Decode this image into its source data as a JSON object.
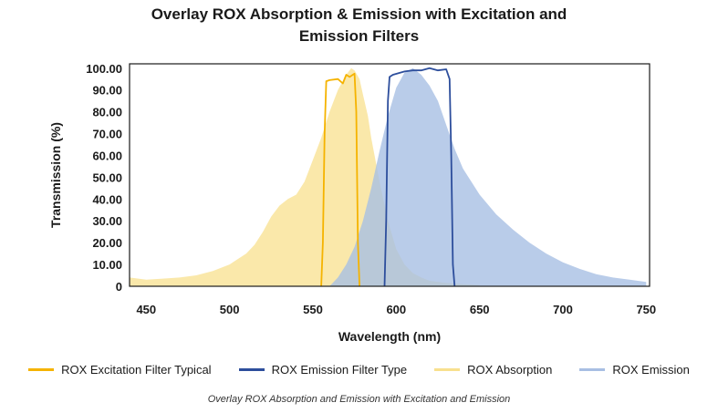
{
  "chart_data": {
    "type": "area",
    "title_line1": "Overlay ROX Absorption & Emission with Excitation and",
    "title_line2": "Emission Filters",
    "xlabel": "Wavelength (nm)",
    "ylabel": "Transmission (%)",
    "xlim": [
      440,
      752
    ],
    "ylim": [
      0,
      102
    ],
    "x_ticks": [
      "450",
      "500",
      "550",
      "600",
      "650",
      "700",
      "750"
    ],
    "y_ticks": [
      "0",
      "10.00",
      "20.00",
      "30.00",
      "40.00",
      "50.00",
      "60.00",
      "70.00",
      "80.00",
      "90.00",
      "100.00"
    ],
    "caption": "Overlay ROX Absorption and Emission with Excitation and Emission",
    "series": [
      {
        "name": "ROX Absorption",
        "kind": "area",
        "color": "#f8e08e",
        "opacity": 0.75,
        "x": [
          440,
          450,
          460,
          470,
          480,
          490,
          500,
          510,
          515,
          520,
          525,
          530,
          535,
          540,
          545,
          550,
          555,
          560,
          565,
          570,
          573,
          575,
          578,
          580,
          583,
          585,
          590,
          595,
          600,
          605,
          610,
          615,
          620,
          630,
          640,
          650
        ],
        "y": [
          4,
          3,
          3.5,
          4,
          5,
          7,
          10,
          15,
          19,
          25,
          32,
          37,
          40,
          42,
          48,
          58,
          68,
          80,
          90,
          97,
          100,
          99,
          95,
          88,
          78,
          68,
          48,
          30,
          17,
          10,
          6,
          4,
          2.5,
          1.5,
          1,
          0.5
        ]
      },
      {
        "name": "ROX Emission",
        "kind": "area",
        "color": "#a8bfe3",
        "opacity": 0.8,
        "x": [
          560,
          565,
          570,
          575,
          580,
          585,
          590,
          595,
          600,
          605,
          610,
          615,
          620,
          625,
          630,
          635,
          640,
          650,
          660,
          670,
          680,
          690,
          700,
          710,
          720,
          730,
          740,
          750
        ],
        "y": [
          0,
          4,
          10,
          18,
          30,
          45,
          62,
          78,
          91,
          98,
          100,
          97,
          92,
          85,
          74,
          63,
          54,
          42,
          33,
          26,
          20,
          15,
          11,
          8,
          5.5,
          4,
          3,
          2
        ]
      },
      {
        "name": "ROX Excitation Filter Typical",
        "kind": "line",
        "color": "#f5b300",
        "x": [
          555,
          556,
          557,
          558,
          560,
          565,
          568,
          570,
          572,
          575,
          576,
          577,
          578
        ],
        "y": [
          0,
          20,
          70,
          94,
          94.5,
          95,
          93,
          97,
          96,
          97.5,
          80,
          20,
          0
        ]
      },
      {
        "name": "ROX Emission Filter Type",
        "kind": "line",
        "color": "#2d4e9c",
        "x": [
          593,
          594,
          595,
          596,
          598,
          605,
          610,
          615,
          620,
          625,
          630,
          632,
          633,
          634,
          635
        ],
        "y": [
          0,
          30,
          85,
          96,
          97,
          98.5,
          99,
          99,
          100,
          99,
          99.5,
          95,
          60,
          10,
          0
        ]
      }
    ]
  }
}
